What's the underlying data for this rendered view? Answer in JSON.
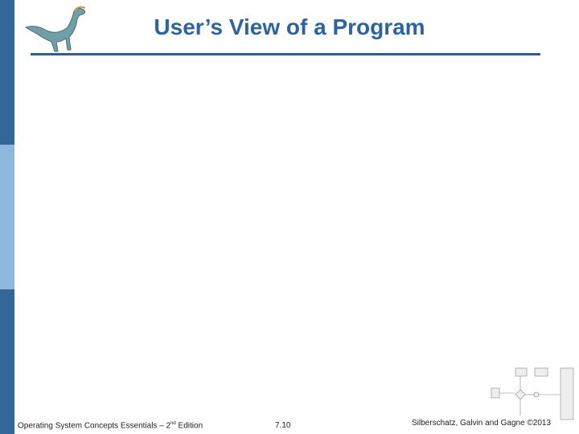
{
  "header": {
    "title": "User’s View of a Program"
  },
  "footer": {
    "left": "Operating System Concepts Essentials – 2",
    "left_sup": "nd",
    "left_end": " Edition",
    "page": "7.10",
    "right": "Silberschatz, Galvin and Gagne ©2013"
  }
}
